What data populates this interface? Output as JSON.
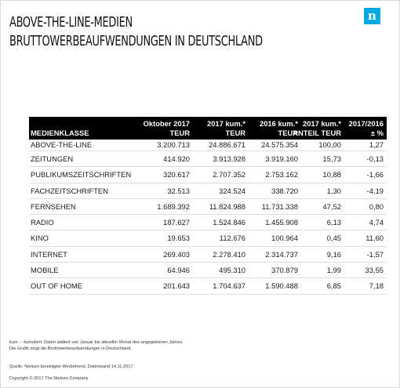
{
  "logo": {
    "glyph": "n",
    "color": "#00a9e0"
  },
  "title": {
    "line1": "ABOVE-THE-LINE-MEDIEN",
    "line2": "BRUTTOWERBEAUFWENDUNGEN IN DEUTSCHLAND"
  },
  "table": {
    "headers": {
      "col0": "MEDIENKLASSE",
      "col1_top": "Oktober 2017",
      "col1_bottom": "TEUR",
      "col2_top": "2017 kum.*",
      "col2_bottom": "TEUR",
      "col3_top": "2016 kum.*",
      "col3_bottom": "TEUR",
      "col4_top": "2017 kum.*",
      "col4_bottom": "ANTEIL TEUR",
      "col5_top": "2017/2016",
      "col5_bottom": "± %"
    },
    "rows": [
      {
        "name": "ABOVE-THE-LINE",
        "oct": "3.200.713",
        "kum2017": "24.886.671",
        "kum2016": "24.575.354",
        "anteil": "100,00",
        "change": "1,27"
      },
      {
        "name": "ZEITUNGEN",
        "oct": "414.920",
        "kum2017": "3.913.928",
        "kum2016": "3.919.160",
        "anteil": "15,73",
        "change": "-0,13"
      },
      {
        "name": "PUBLIKUMSZEITSCHRIFTEN",
        "oct": "320.617",
        "kum2017": "2.707.352",
        "kum2016": "2.753.162",
        "anteil": "10,88",
        "change": "-1,66"
      },
      {
        "name": "FACHZEITSCHRIFTEN",
        "oct": "32.513",
        "kum2017": "324.524",
        "kum2016": "338.720",
        "anteil": "1,30",
        "change": "-4,19"
      },
      {
        "name": "FERNSEHEN",
        "oct": "1.689.392",
        "kum2017": "11.824.988",
        "kum2016": "11.731.338",
        "anteil": "47,52",
        "change": "0,80"
      },
      {
        "name": "RADIO",
        "oct": "187.627",
        "kum2017": "1.524.846",
        "kum2016": "1.455.908",
        "anteil": "6,13",
        "change": "4,74"
      },
      {
        "name": "KINO",
        "oct": "19.653",
        "kum2017": "112.676",
        "kum2016": "100.964",
        "anteil": "0,45",
        "change": "11,60"
      },
      {
        "name": "INTERNET",
        "oct": "269.403",
        "kum2017": "2.278.410",
        "kum2016": "2.314.737",
        "anteil": "9,16",
        "change": "-1,57"
      },
      {
        "name": "MOBILE",
        "oct": "64.946",
        "kum2017": "495.310",
        "kum2016": "370.879",
        "anteil": "1,99",
        "change": "33,55"
      },
      {
        "name": "OUT OF HOME",
        "oct": "201.643",
        "kum2017": "1.704.637",
        "kum2016": "1.590.488",
        "anteil": "6,85",
        "change": "7,18"
      }
    ]
  },
  "notes": {
    "line1": "kum. – kumuliert: Daten addiert von Januar bis aktueller Monat des angegebenen Jahres.",
    "line2": "Die Grafik zeigt die Bruttowerbeaufwendungen in Deutschland."
  },
  "source": "Quelle: Nielsen bereinigter Werbetrend, Datenstand 14.11.2017",
  "copyright": "Copyright © 2017 The Nielsen Company"
}
